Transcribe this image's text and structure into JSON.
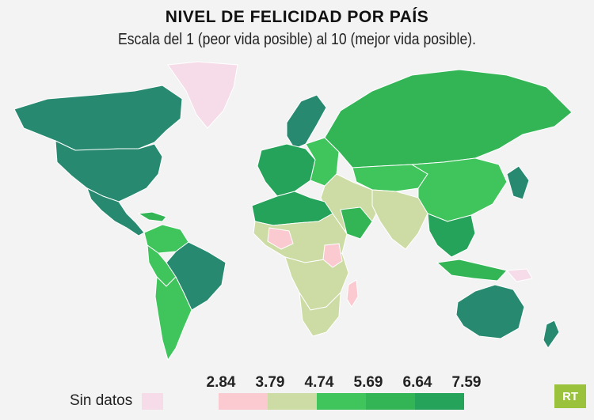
{
  "title": "NIVEL DE FELICIDAD POR PAÍS",
  "subtitle": "Escala del 1 (peor vida posible) al 10 (mejor vida posible).",
  "colors": {
    "nodata": "#f5dce8",
    "bins": [
      "#fbc9d0",
      "#cddca5",
      "#3fc55b",
      "#33b556",
      "#26a35a",
      "#278a70"
    ],
    "border": "#ffffff"
  },
  "legend": {
    "nodata_label": "Sin datos",
    "ticks": [
      "2.84",
      "3.79",
      "4.74",
      "5.69",
      "6.64",
      "7.59"
    ]
  },
  "logo": {
    "text": "RT"
  }
}
